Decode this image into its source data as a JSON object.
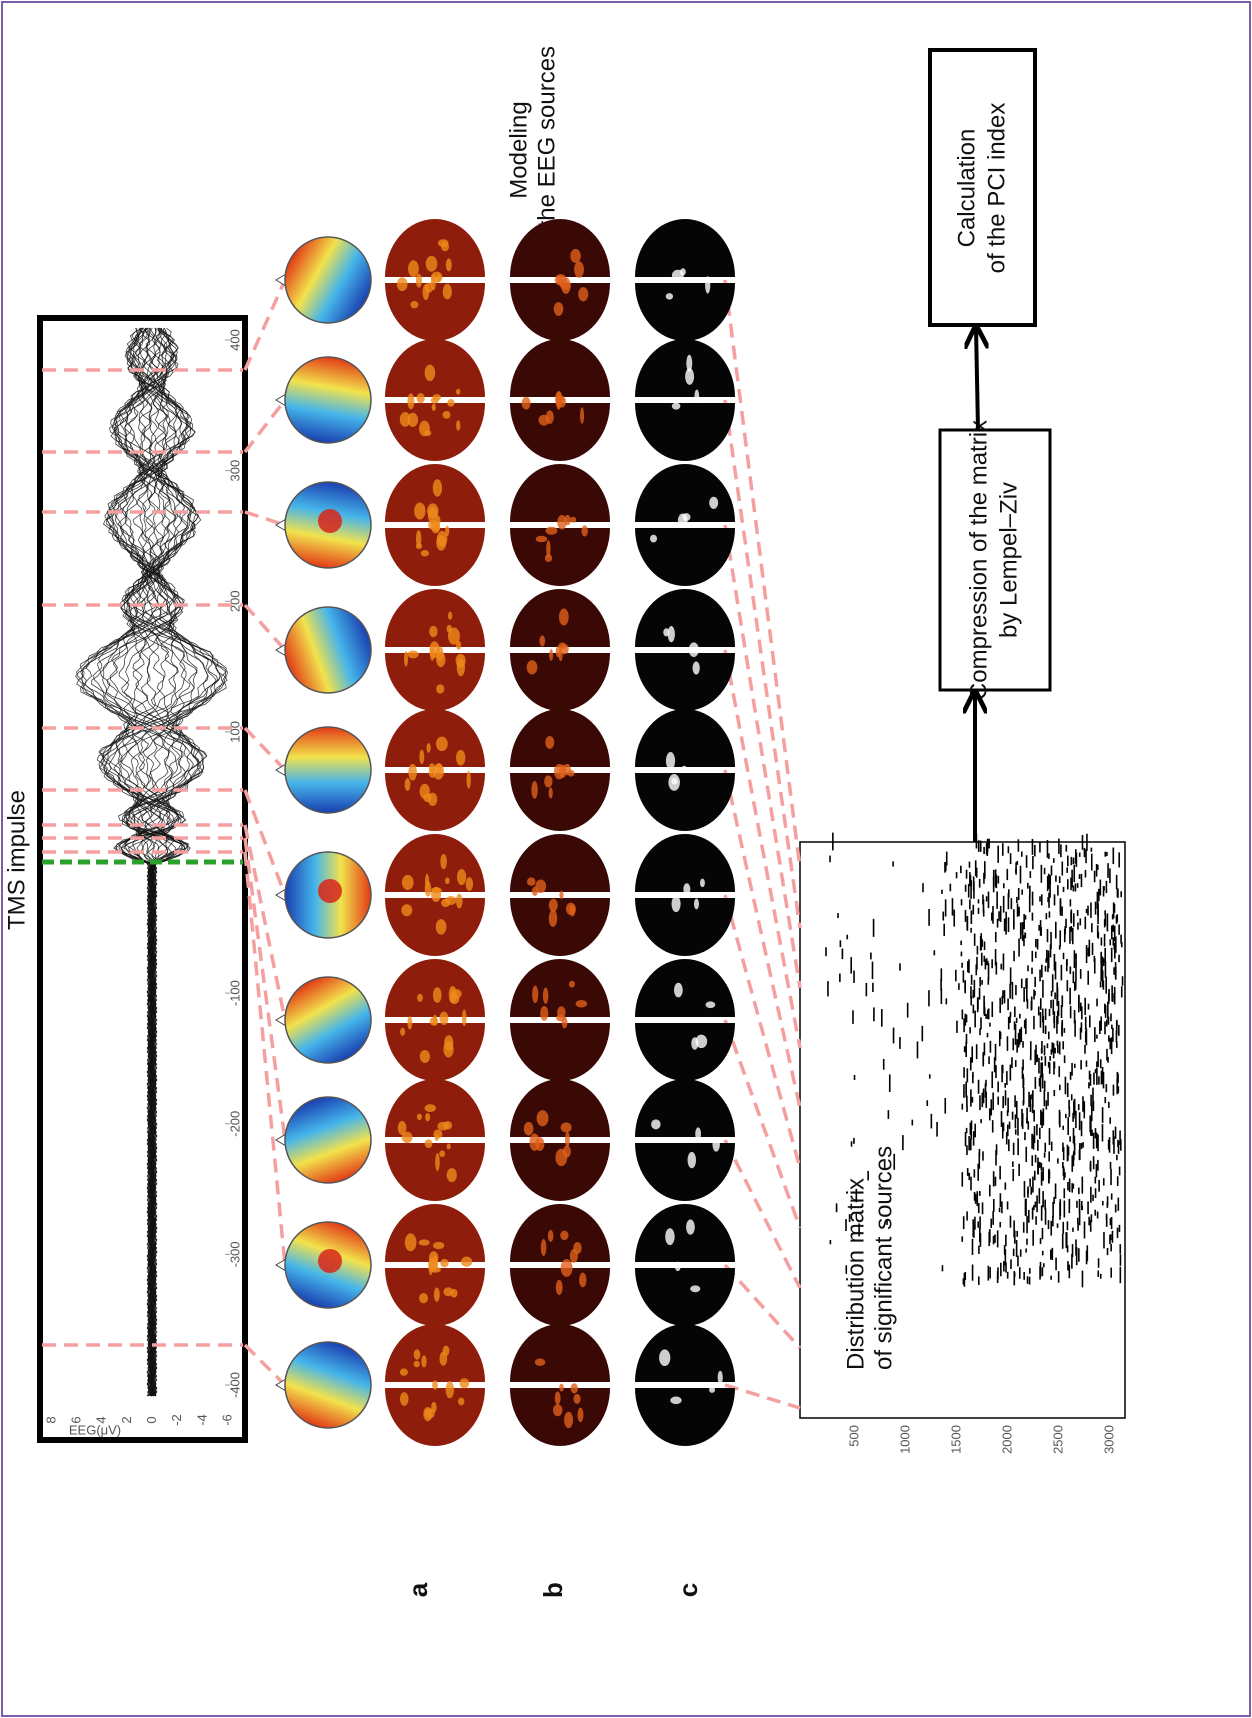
{
  "header": {
    "tms_label": "TMS impulse"
  },
  "eeg_plot": {
    "y_label": "EEG(μV)",
    "y_ticks": [
      "8",
      "6",
      "4",
      "2",
      "0",
      "-2",
      "-4",
      "-6"
    ],
    "x_ticks": [
      "-400",
      "-300",
      "-200",
      "-100",
      "100",
      "200",
      "300",
      "400"
    ]
  },
  "modeling_label": [
    "Modeling",
    "of the EEG sources"
  ],
  "row_labels": [
    "a",
    "b",
    "c"
  ],
  "matrix": {
    "label": [
      "Distribution matrix",
      "of significant sources"
    ],
    "ticks": [
      "500",
      "1000",
      "1500",
      "2000",
      "2500",
      "3000"
    ]
  },
  "boxes": {
    "compression": [
      "Compression of the matrix",
      "by Lempel–Ziv"
    ],
    "pci": [
      "Calculation",
      "of the PCI index"
    ]
  }
}
